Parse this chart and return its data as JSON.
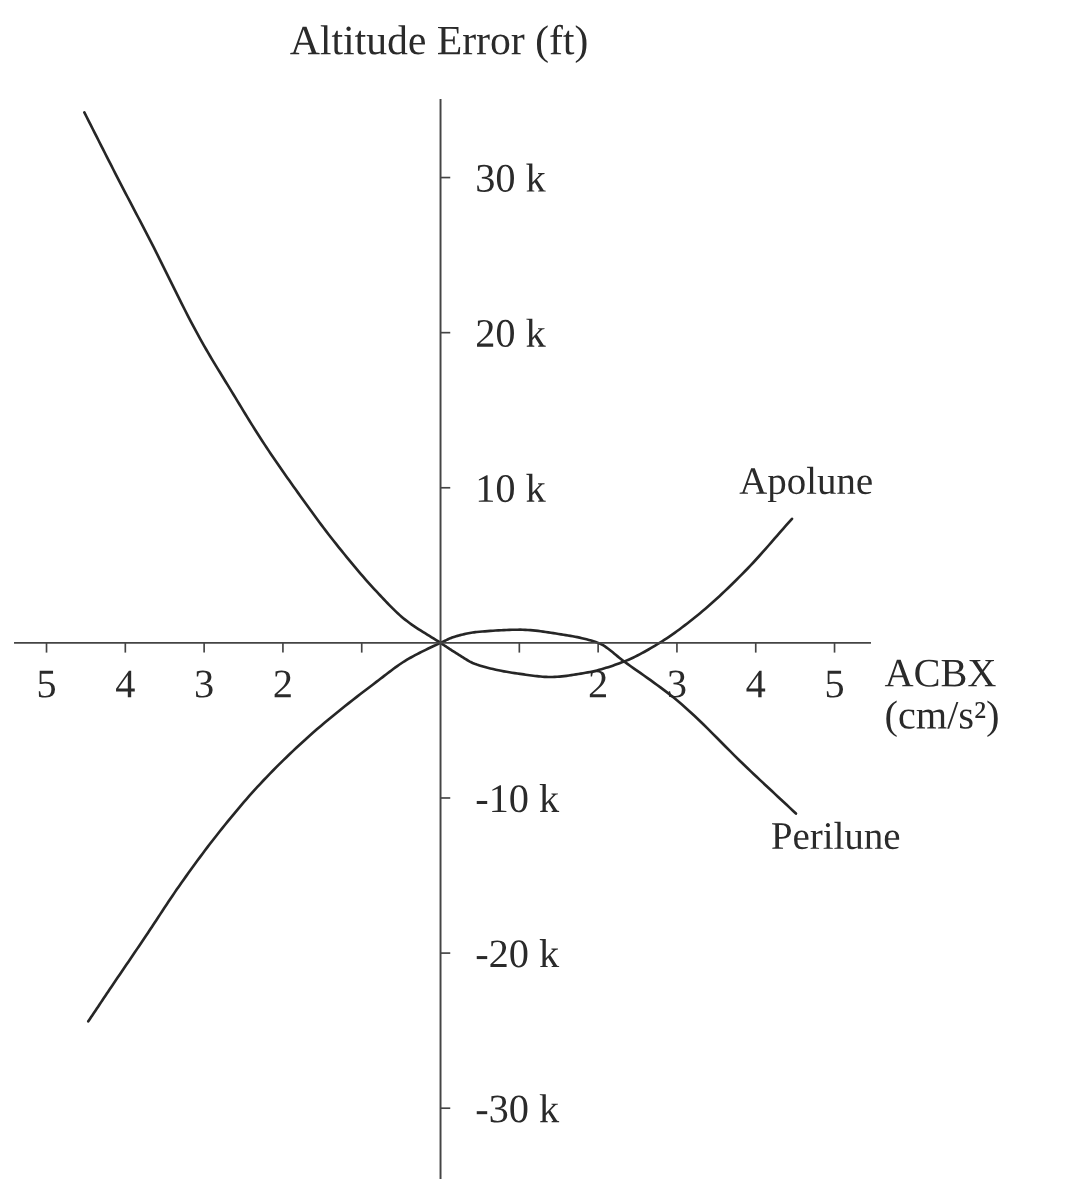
{
  "chart_data": {
    "type": "line",
    "ylabel": "Altitude Error (ft)",
    "xlabel": "ACBX\n(cm/s²)",
    "xlim": [
      -5.4,
      5.45
    ],
    "ylim": [
      -34500,
      35000
    ],
    "xticks": [
      {
        "value": -5,
        "label": "5"
      },
      {
        "value": -4,
        "label": "4"
      },
      {
        "value": -3,
        "label": "3"
      },
      {
        "value": -2,
        "label": "2"
      },
      {
        "value": -1,
        "label": null
      },
      {
        "value": 1,
        "label": null
      },
      2,
      3,
      4,
      5
    ],
    "yticks": [
      {
        "value": 30000,
        "label": "30 k"
      },
      {
        "value": 20000,
        "label": "20 k"
      },
      {
        "value": 10000,
        "label": "10 k"
      },
      {
        "value": -10000,
        "label": "-10 k"
      },
      {
        "value": -20000,
        "label": "-20 k"
      },
      {
        "value": -30000,
        "label": "-30 k"
      }
    ],
    "series": [
      {
        "name": "Apolune",
        "color": "#262626",
        "x": [
          -4.52,
          -4.1,
          -3.68,
          -3.05,
          -2.65,
          -2.26,
          -1.84,
          -1.36,
          -0.81,
          -0.45,
          0,
          0.18,
          0.46,
          1.01,
          1.39,
          1.87,
          2.33,
          2.78,
          3.29,
          3.86,
          4.46
        ],
        "values": [
          34200,
          30000,
          25900,
          19600,
          16200,
          13000,
          9900,
          6600,
          3300,
          1500,
          0,
          -600,
          -1400,
          -2000,
          -2200,
          -1900,
          -1200,
          0,
          1900,
          4600,
          8000
        ]
      },
      {
        "name": "Perilune",
        "color": "#262626",
        "x": [
          -4.47,
          -4.18,
          -3.74,
          -3.32,
          -2.84,
          -2.29,
          -1.62,
          -0.81,
          -0.43,
          0,
          0.18,
          0.46,
          1.01,
          1.53,
          2.0,
          2.33,
          3.0,
          3.9,
          4.51
        ],
        "values": [
          -24400,
          -22200,
          -18900,
          -15700,
          -12400,
          -9100,
          -5800,
          -2500,
          -1100,
          0,
          400,
          700,
          850,
          550,
          0,
          -1200,
          -3700,
          -8100,
          -11000
        ]
      }
    ]
  }
}
